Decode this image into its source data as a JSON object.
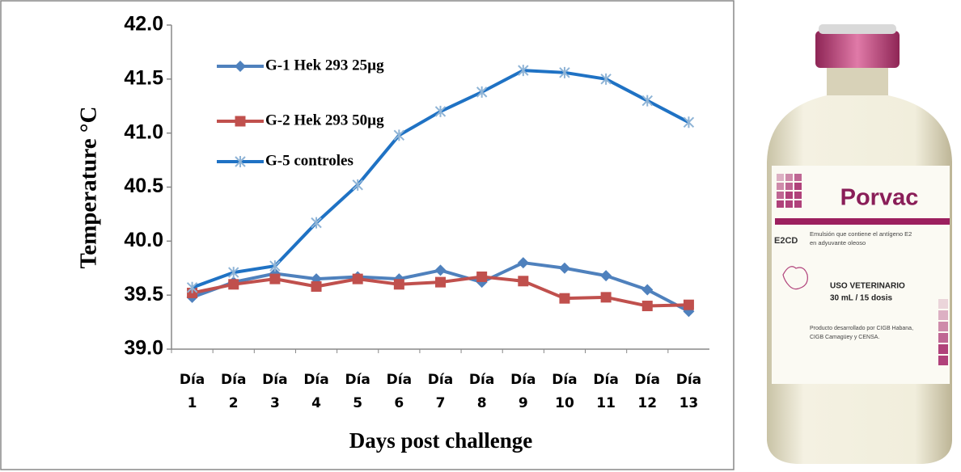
{
  "chart_data": {
    "type": "line",
    "x_label": "Days post challenge",
    "y_label": "Temperature °C",
    "categories": [
      "Día 1",
      "Día 2",
      "Día 3",
      "Día 4",
      "Día 5",
      "Día 6",
      "Día 7",
      "Día 8",
      "Día 9",
      "Día 10",
      "Día 11",
      "Día 12",
      "Día 13"
    ],
    "series": [
      {
        "name": "G-1 Hek 293 25µg",
        "color": "#4f81bd",
        "marker": "diamond",
        "values": [
          39.48,
          39.62,
          39.7,
          39.65,
          39.67,
          39.65,
          39.73,
          39.62,
          39.8,
          39.75,
          39.68,
          39.55,
          39.35
        ]
      },
      {
        "name": "G-2 Hek 293 50µg",
        "color": "#c0504d",
        "marker": "square",
        "values": [
          39.52,
          39.6,
          39.65,
          39.58,
          39.65,
          39.6,
          39.62,
          39.67,
          39.63,
          39.47,
          39.48,
          39.4,
          39.41
        ]
      },
      {
        "name": "G-5 controles",
        "color": "#1f72c4",
        "marker": "asterisk",
        "values": [
          39.57,
          39.71,
          39.77,
          40.17,
          40.52,
          40.98,
          41.2,
          41.38,
          41.58,
          41.56,
          41.5,
          41.3,
          41.1
        ]
      }
    ],
    "ylim": [
      39.0,
      42.0
    ],
    "yticks": [
      {
        "value": 39,
        "label": "39.0"
      },
      39.5,
      {
        "value": 40,
        "label": "40.0"
      },
      40.5,
      {
        "value": 41,
        "label": "41.0"
      },
      41.5,
      {
        "value": 42,
        "label": "42.0"
      }
    ],
    "legend": "upper left"
  },
  "product_label": {
    "brand": "Porvac",
    "code": "E2CD",
    "description": [
      "Emulsión que contiene el antígeno E2",
      "en adyuvante oleoso"
    ],
    "use": "USO VETERINARIO",
    "dose": "30 mL / 15 dosis",
    "credits": [
      "Producto desarrollado por CIGB Habana,",
      "CIGB Camagüey y CENSA."
    ]
  }
}
